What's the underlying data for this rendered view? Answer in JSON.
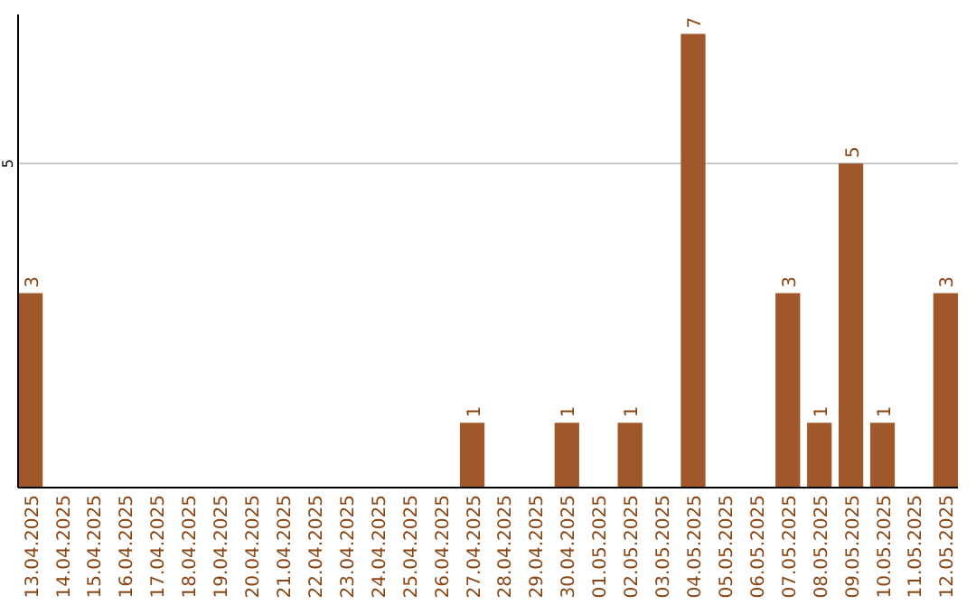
{
  "chart_data": {
    "type": "bar",
    "categories": [
      "13.04.2025",
      "14.04.2025",
      "15.04.2025",
      "16.04.2025",
      "17.04.2025",
      "18.04.2025",
      "19.04.2025",
      "20.04.2025",
      "21.04.2025",
      "22.04.2025",
      "23.04.2025",
      "24.04.2025",
      "25.04.2025",
      "26.04.2025",
      "27.04.2025",
      "28.04.2025",
      "29.04.2025",
      "30.04.2025",
      "01.05.2025",
      "02.05.2025",
      "03.05.2025",
      "04.05.2025",
      "05.05.2025",
      "06.05.2025",
      "07.05.2025",
      "08.05.2025",
      "09.05.2025",
      "10.05.2025",
      "11.05.2025",
      "12.05.2025"
    ],
    "values": [
      3,
      0,
      0,
      0,
      0,
      0,
      0,
      0,
      0,
      0,
      0,
      0,
      0,
      0,
      1,
      0,
      0,
      1,
      0,
      1,
      0,
      7,
      0,
      0,
      3,
      1,
      5,
      1,
      0,
      3
    ],
    "value_labels": [
      "3",
      null,
      null,
      null,
      null,
      null,
      null,
      null,
      null,
      null,
      null,
      null,
      null,
      null,
      "1",
      null,
      null,
      "1",
      null,
      "1",
      null,
      "7",
      null,
      null,
      "3",
      "1",
      "5",
      "1",
      null,
      "3"
    ],
    "color": "#a0572a",
    "ylim": [
      0,
      7.3
    ],
    "yticks": [
      5
    ],
    "grid": "y"
  }
}
